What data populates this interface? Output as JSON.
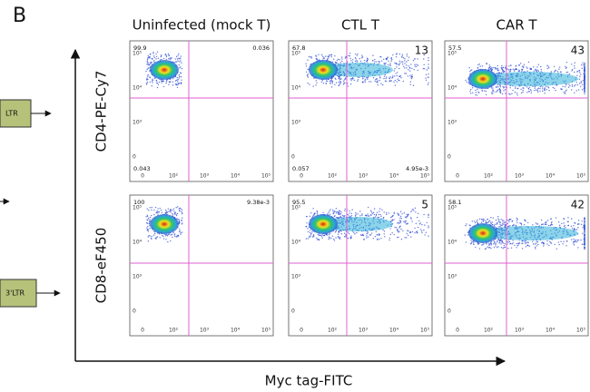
{
  "panel_label": "B",
  "construct_labels": [
    "LTR",
    "3'LTR"
  ],
  "columns": [
    "Uninfected (mock T)",
    "CTL T",
    "CAR T"
  ],
  "x_axis_label": "Myc tag-FITC",
  "ticks": {
    "y": [
      "10⁵",
      "10⁴",
      "10³",
      "0"
    ],
    "x": [
      "0",
      "10²",
      "10³",
      "10⁴",
      "10⁵"
    ]
  },
  "rows": [
    {
      "label": "CD4-PE-Cy7",
      "plots": [
        {
          "ul": "99.9",
          "ur": "0.036",
          "ll": "0.043"
        },
        {
          "ul": "67.8",
          "ur": "13",
          "ll": "0.057",
          "lr": "4.95e-3"
        },
        {
          "ul": "57.5",
          "ur": "43"
        }
      ]
    },
    {
      "label": "CD8-eF450",
      "plots": [
        {
          "ul": "100",
          "ur": "9.38e-3"
        },
        {
          "ul": "95.5",
          "ur": "5"
        },
        {
          "ul": "58.1",
          "ur": "42"
        }
      ]
    }
  ]
}
